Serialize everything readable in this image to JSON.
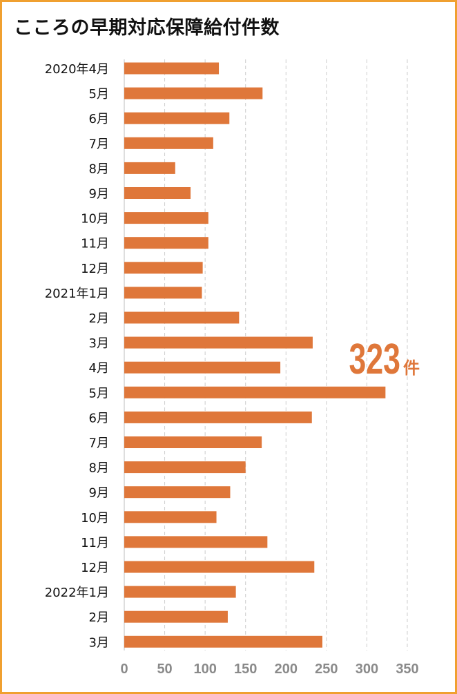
{
  "title": "こころの早期対応保障給付件数",
  "colors": {
    "bar": "#df773a",
    "frame": "#f0a030",
    "axis_tick": "#8a8a8a",
    "grid": "#cccccc",
    "callout": "#df773a"
  },
  "callout": {
    "value": "323",
    "unit": "件"
  },
  "chart_data": {
    "type": "bar",
    "orientation": "horizontal",
    "title": "こころの早期対応保障給付件数",
    "xlabel": "",
    "ylabel": "",
    "xlim": [
      0,
      350
    ],
    "x_ticks": [
      "0",
      "50",
      "100",
      "150",
      "200",
      "250",
      "300",
      "350"
    ],
    "grid": "vertical dashed",
    "categories": [
      "2020年4月",
      "5月",
      "6月",
      "7月",
      "8月",
      "9月",
      "10月",
      "11月",
      "12月",
      "2021年1月",
      "2月",
      "3月",
      "4月",
      "5月",
      "6月",
      "7月",
      "8月",
      "9月",
      "10月",
      "11月",
      "12月",
      "2022年1月",
      "2月",
      "3月"
    ],
    "values": [
      117,
      171,
      130,
      110,
      63,
      82,
      104,
      104,
      97,
      96,
      142,
      233,
      193,
      323,
      232,
      170,
      150,
      131,
      114,
      177,
      235,
      138,
      128,
      245
    ],
    "annotation": "323件"
  }
}
